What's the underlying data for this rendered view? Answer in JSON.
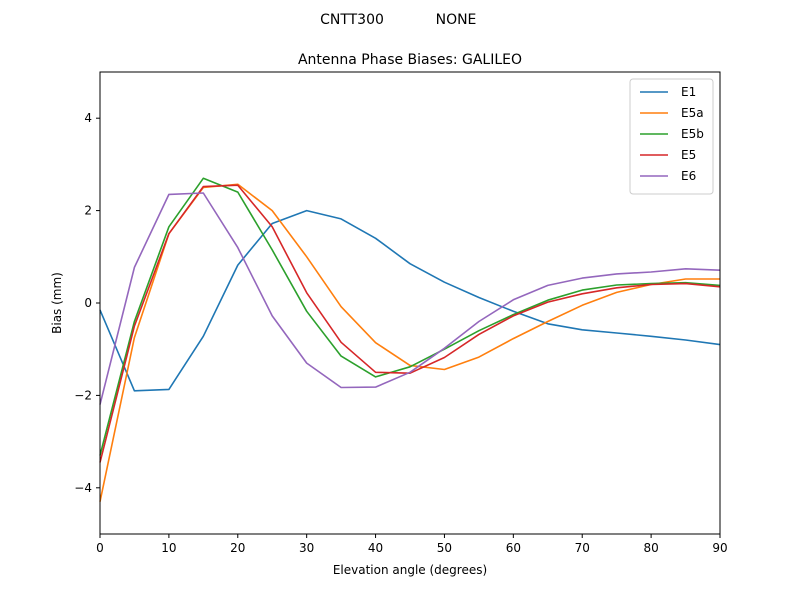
{
  "header": {
    "antenna": "CNTT300",
    "radome": "NONE"
  },
  "chart_data": {
    "type": "line",
    "title": "Antenna Phase Biases: GALILEO",
    "xlabel": "Elevation angle (degrees)",
    "ylabel": "Bias (mm)",
    "xlim": [
      0,
      90
    ],
    "ylim": [
      -5,
      5
    ],
    "xticks": [
      0,
      10,
      20,
      30,
      40,
      50,
      60,
      70,
      80,
      90
    ],
    "yticks": [
      -4,
      -2,
      0,
      2,
      4
    ],
    "legend_position": "top-right",
    "grid": false,
    "x": [
      0,
      5,
      10,
      15,
      20,
      25,
      30,
      35,
      40,
      45,
      50,
      55,
      60,
      65,
      70,
      75,
      80,
      85,
      90
    ],
    "series": [
      {
        "name": "E1",
        "color": "#1f77b4",
        "values": [
          -0.15,
          -1.9,
          -1.87,
          -0.72,
          0.82,
          1.72,
          2.0,
          1.82,
          1.4,
          0.85,
          0.45,
          0.12,
          -0.18,
          -0.45,
          -0.58,
          -0.65,
          -0.72,
          -0.8,
          -0.9
        ]
      },
      {
        "name": "E5a",
        "color": "#ff7f0e",
        "values": [
          -4.3,
          -0.75,
          1.5,
          2.5,
          2.57,
          2.0,
          1.0,
          -0.08,
          -0.86,
          -1.35,
          -1.44,
          -1.17,
          -0.77,
          -0.4,
          -0.05,
          0.23,
          0.4,
          0.52,
          0.52
        ]
      },
      {
        "name": "E5b",
        "color": "#2ca02c",
        "values": [
          -3.3,
          -0.4,
          1.65,
          2.7,
          2.4,
          1.15,
          -0.18,
          -1.15,
          -1.6,
          -1.38,
          -1.0,
          -0.6,
          -0.25,
          0.06,
          0.28,
          0.39,
          0.42,
          0.44,
          0.38
        ]
      },
      {
        "name": "E5",
        "color": "#d62728",
        "values": [
          -3.45,
          -0.5,
          1.5,
          2.52,
          2.55,
          1.65,
          0.22,
          -0.85,
          -1.5,
          -1.52,
          -1.18,
          -0.68,
          -0.28,
          0.02,
          0.2,
          0.33,
          0.4,
          0.42,
          0.35
        ]
      },
      {
        "name": "E6",
        "color": "#9467bd",
        "values": [
          -2.2,
          0.77,
          2.35,
          2.38,
          1.2,
          -0.28,
          -1.3,
          -1.83,
          -1.82,
          -1.5,
          -0.98,
          -0.4,
          0.07,
          0.38,
          0.54,
          0.63,
          0.67,
          0.74,
          0.71
        ]
      }
    ]
  }
}
